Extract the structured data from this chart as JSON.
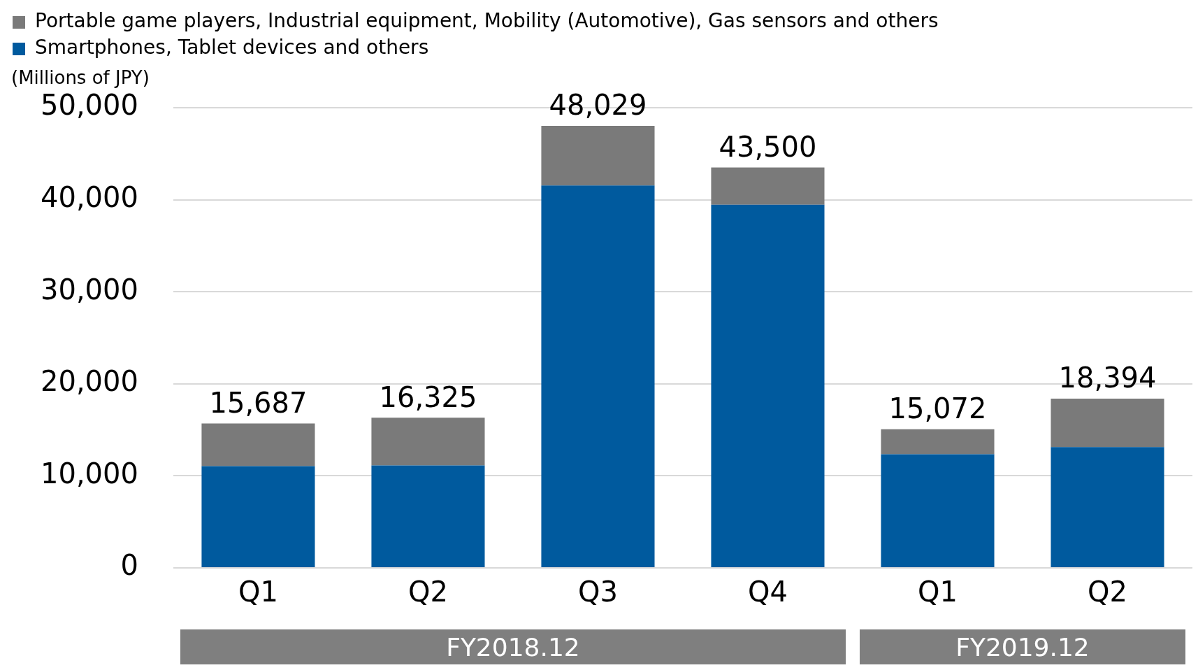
{
  "chart_data": {
    "type": "bar",
    "stacked": true,
    "categories": [
      "Q1",
      "Q2",
      "Q3",
      "Q4",
      "Q1",
      "Q2"
    ],
    "series": [
      {
        "name": "Smartphones, Tablet devices and others",
        "color": "#005a9e",
        "values": [
          11050,
          11140,
          41540,
          39460,
          12350,
          13130
        ]
      },
      {
        "name": "Portable game players, Industrial equipment, Mobility (Automotive), Gas sensors and others",
        "color": "#7a7a7a",
        "values": [
          4637,
          5185,
          6489,
          4040,
          2722,
          5264
        ]
      }
    ],
    "totals": [
      "15,687",
      "16,325",
      "48,029",
      "43,500",
      "15,072",
      "18,394"
    ],
    "ylabel": "(Millions of JPY)",
    "ylim": [
      0,
      50000
    ],
    "yticks": [
      0,
      {
        "value": 10000,
        "label": "10,000"
      },
      {
        "value": 20000,
        "label": "20,000"
      },
      {
        "value": 30000,
        "label": "30,000"
      },
      {
        "value": 40000,
        "label": "40,000"
      },
      {
        "value": 50000,
        "label": "50,000"
      }
    ],
    "grid": "y",
    "legend": "top left",
    "annotations": [
      "FY2018.12",
      "FY2019.12"
    ]
  }
}
